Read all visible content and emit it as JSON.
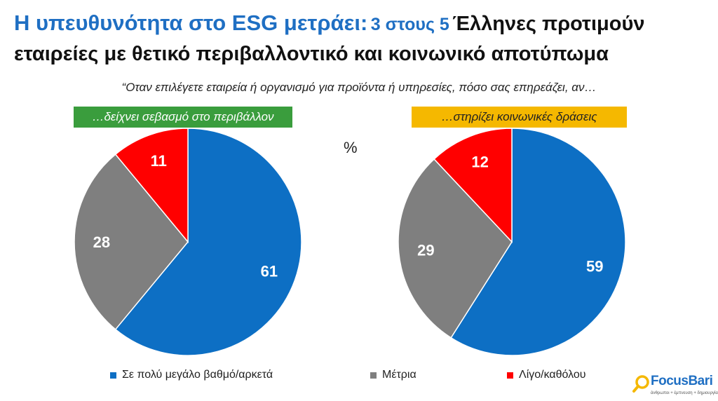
{
  "title": {
    "part1": "Η υπευθυνότητα στο ESG μετράει:",
    "part2": "3 στους 5",
    "part3": "Έλληνες προτιμούν εταιρείες με θετικό περιβαλλοντικό και κοινωνικό αποτύπωμα"
  },
  "subtitle": "“Οταν επιλέγετε εταιρεία ή οργανισμό για προϊόντα ή υπηρεσίες, πόσο σας επηρεάζει, αν…",
  "unit_label": "%",
  "colors": {
    "blue": "#0d6fc4",
    "gray": "#7f7f7f",
    "red": "#ff0000",
    "green": "#3a9d3d",
    "yellow": "#f5b800"
  },
  "legend": [
    {
      "label": "Σε πολύ μεγάλο βαθμό/αρκετά",
      "color": "#0d6fc4"
    },
    {
      "label": "Μέτρια",
      "color": "#7f7f7f"
    },
    {
      "label": "Λίγο/καθόλου",
      "color": "#ff0000"
    }
  ],
  "logo": {
    "name": "FocusBari",
    "tagline": "άνθρωποι + έμπνευση + δημιουργία"
  },
  "chart_data": [
    {
      "type": "pie",
      "title": "…δείχνει σεβασμό στο περιβάλλον",
      "categories": [
        "Σε πολύ μεγάλο βαθμό/αρκετά",
        "Μέτρια",
        "Λίγο/καθόλου"
      ],
      "values": [
        61,
        28,
        11
      ],
      "colors": [
        "#0d6fc4",
        "#7f7f7f",
        "#ff0000"
      ]
    },
    {
      "type": "pie",
      "title": "…στηρίζει κοινωνικές δράσεις",
      "categories": [
        "Σε πολύ μεγάλο βαθμό/αρκετά",
        "Μέτρια",
        "Λίγο/καθόλου"
      ],
      "values": [
        59,
        29,
        12
      ],
      "colors": [
        "#0d6fc4",
        "#7f7f7f",
        "#ff0000"
      ]
    }
  ]
}
